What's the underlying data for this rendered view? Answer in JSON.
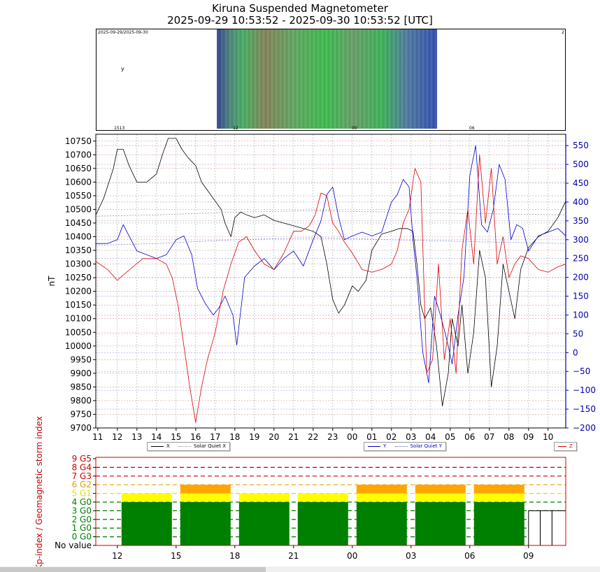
{
  "header": {
    "title": "Kiruna Suspended Magnetometer",
    "subtitle": "2025-09-29 10:53:52 - 2025-09-30 10:53:52 [UTC]"
  },
  "keogram": {
    "top_left_label": "2025-09-29/2025-09-30",
    "right_label": "2",
    "marker_y": "y",
    "bottom_labels": [
      "1513",
      "12",
      "00",
      "06"
    ]
  },
  "colors": {
    "x": "#000000",
    "y": "#0000cc",
    "z": "#dd0000",
    "g_green": "#008000",
    "g_yellow": "#ffff00",
    "g_orange": "#ffa500",
    "level_red": "#cc0000",
    "level_orange": "#e6a000",
    "level_yellow": "#dddd00",
    "level_green": "#008000"
  },
  "chart_data": [
    {
      "type": "line",
      "ylabel": "nT",
      "ylim": [
        9700,
        10775
      ],
      "y2lim": [
        -200,
        580
      ],
      "yticks": [
        9700,
        9750,
        9800,
        9850,
        9900,
        9950,
        10000,
        10050,
        10100,
        10150,
        10200,
        10250,
        10300,
        10350,
        10400,
        10450,
        10500,
        10550,
        10600,
        10650,
        10700,
        10750
      ],
      "y2ticks": [
        -200,
        -150,
        -100,
        -50,
        0,
        50,
        100,
        150,
        200,
        250,
        300,
        350,
        400,
        450,
        500,
        550
      ],
      "xticks": [
        "11",
        "12",
        "13",
        "14",
        "15",
        "16",
        "17",
        "18",
        "19",
        "20",
        "21",
        "22",
        "23",
        "00",
        "01",
        "02",
        "03",
        "04",
        "05",
        "06",
        "07",
        "08",
        "09",
        "10"
      ],
      "xlim_hours": [
        10.9,
        34.9
      ],
      "series": [
        {
          "name": "X",
          "axis": "left",
          "x": [
            10.9,
            11.3,
            11.8,
            12.0,
            12.3,
            12.6,
            13.0,
            13.5,
            14.0,
            14.3,
            14.6,
            15.0,
            15.3,
            15.6,
            16.0,
            16.3,
            16.7,
            17.0,
            17.3,
            17.5,
            17.8,
            18.0,
            18.3,
            18.6,
            19.0,
            19.5,
            20.0,
            20.5,
            21.0,
            21.5,
            22.0,
            22.4,
            22.7,
            23.0,
            23.3,
            23.6,
            24.0,
            24.3,
            24.7,
            25.0,
            25.5,
            26.0,
            26.4,
            26.8,
            27.1,
            27.3,
            27.5,
            27.7,
            28.0,
            28.3,
            28.6,
            28.9,
            29.1,
            29.4,
            29.6,
            29.9,
            30.2,
            30.5,
            30.8,
            31.1,
            31.4,
            31.7,
            32.0,
            32.3,
            32.6,
            33.0,
            33.5,
            34.0,
            34.5,
            34.9
          ],
          "y": [
            10480,
            10540,
            10650,
            10720,
            10720,
            10660,
            10600,
            10600,
            10630,
            10700,
            10760,
            10760,
            10720,
            10690,
            10660,
            10600,
            10560,
            10530,
            10500,
            10450,
            10400,
            10470,
            10490,
            10480,
            10470,
            10480,
            10460,
            10450,
            10440,
            10430,
            10420,
            10400,
            10300,
            10170,
            10120,
            10150,
            10220,
            10200,
            10240,
            10350,
            10410,
            10420,
            10430,
            10430,
            10420,
            10300,
            10150,
            10100,
            10140,
            10000,
            9780,
            9900,
            10100,
            10000,
            10150,
            9900,
            10050,
            10350,
            10250,
            9850,
            10000,
            10300,
            10200,
            10100,
            10280,
            10360,
            10400,
            10420,
            10470,
            10530
          ]
        },
        {
          "name": "Solar Quiet X",
          "axis": "left",
          "x": [
            10.9,
            14.0,
            18.0,
            22.0,
            26.0,
            30.0,
            34.9
          ],
          "y": [
            10475,
            10480,
            10490,
            10495,
            10490,
            10485,
            10480
          ]
        },
        {
          "name": "Y",
          "axis": "right",
          "x": [
            10.9,
            11.5,
            12.0,
            12.3,
            12.7,
            13.0,
            13.5,
            14.0,
            14.5,
            15.0,
            15.4,
            15.8,
            16.1,
            16.5,
            16.9,
            17.2,
            17.5,
            17.9,
            18.1,
            18.5,
            19.0,
            19.5,
            20.0,
            20.5,
            21.0,
            21.5,
            22.0,
            22.4,
            22.7,
            23.0,
            23.3,
            23.6,
            24.0,
            24.5,
            25.0,
            25.5,
            26.0,
            26.3,
            26.6,
            26.9,
            27.1,
            27.3,
            27.6,
            27.9,
            28.2,
            28.5,
            28.8,
            29.1,
            29.4,
            29.7,
            30.0,
            30.3,
            30.6,
            30.9,
            31.2,
            31.5,
            31.8,
            32.1,
            32.4,
            32.7,
            33.0,
            33.5,
            34.0,
            34.5,
            34.9
          ],
          "y": [
            290,
            290,
            300,
            340,
            300,
            270,
            260,
            250,
            260,
            300,
            310,
            260,
            170,
            130,
            100,
            120,
            150,
            100,
            20,
            200,
            230,
            250,
            220,
            250,
            270,
            230,
            300,
            350,
            420,
            440,
            360,
            300,
            310,
            320,
            310,
            320,
            400,
            420,
            460,
            440,
            300,
            200,
            0,
            -80,
            150,
            100,
            40,
            -30,
            100,
            200,
            470,
            550,
            340,
            320,
            380,
            500,
            460,
            300,
            340,
            330,
            270,
            310,
            320,
            330,
            310
          ]
        },
        {
          "name": "Solar Quiet Y",
          "axis": "right",
          "x": [
            10.9,
            14.0,
            18.0,
            22.0,
            26.0,
            30.0,
            34.9
          ],
          "y": [
            285,
            290,
            300,
            305,
            300,
            295,
            290
          ]
        },
        {
          "name": "Z",
          "axis": "left",
          "x": [
            10.9,
            11.5,
            12.0,
            12.3,
            12.8,
            13.3,
            14.0,
            14.5,
            14.8,
            15.1,
            15.4,
            15.7,
            16.0,
            16.3,
            16.6,
            17.0,
            17.4,
            17.8,
            18.2,
            18.6,
            19.0,
            19.5,
            20.0,
            20.5,
            21.0,
            21.4,
            21.8,
            22.1,
            22.4,
            22.7,
            23.0,
            23.3,
            23.6,
            24.0,
            24.5,
            25.0,
            25.5,
            26.0,
            26.3,
            26.6,
            26.9,
            27.2,
            27.5,
            27.8,
            28.1,
            28.4,
            28.7,
            29.0,
            29.3,
            29.6,
            29.9,
            30.2,
            30.5,
            30.8,
            31.1,
            31.4,
            31.7,
            32.0,
            32.3,
            32.6,
            33.0,
            33.5,
            34.0,
            34.5,
            34.9
          ],
          "y": [
            10310,
            10280,
            10240,
            10260,
            10290,
            10320,
            10320,
            10300,
            10250,
            10150,
            10000,
            9850,
            9720,
            9850,
            9950,
            10050,
            10200,
            10300,
            10380,
            10400,
            10350,
            10300,
            10280,
            10340,
            10420,
            10420,
            10440,
            10480,
            10560,
            10550,
            10450,
            10420,
            10380,
            10340,
            10280,
            10270,
            10280,
            10300,
            10350,
            10450,
            10500,
            10650,
            10600,
            9900,
            9950,
            10300,
            9950,
            10100,
            9900,
            10350,
            10500,
            10300,
            10700,
            10450,
            10650,
            10300,
            10400,
            10250,
            10300,
            10330,
            10320,
            10280,
            10270,
            10290,
            10300
          ]
        }
      ]
    },
    {
      "type": "bar",
      "ylabel": "Kp-index / Geomagnetic storm index",
      "ylevels": [
        "No value",
        "0 G0",
        "1 G0",
        "2 G0",
        "3 G0",
        "4 G0",
        "5 G1",
        "6 G2",
        "7 G3",
        "8 G4",
        "9 G5"
      ],
      "xticks": [
        "12",
        "15",
        "18",
        "21",
        "00",
        "03",
        "06",
        "09"
      ],
      "xlim_hours": [
        10.9,
        34.9
      ],
      "bars": [
        {
          "start": 12.0,
          "end": 15.0,
          "kp": 5
        },
        {
          "start": 15.0,
          "end": 18.0,
          "kp": 6
        },
        {
          "start": 18.0,
          "end": 21.0,
          "kp": 5
        },
        {
          "start": 21.0,
          "end": 24.0,
          "kp": 5
        },
        {
          "start": 24.0,
          "end": 27.0,
          "kp": 6
        },
        {
          "start": 27.0,
          "end": 30.0,
          "kp": 6
        },
        {
          "start": 30.0,
          "end": 33.0,
          "kp": 6
        }
      ],
      "no_value_bars": [
        {
          "start": 33.0,
          "end": 33.6
        },
        {
          "start": 33.6,
          "end": 34.2
        },
        {
          "start": 34.2,
          "end": 34.9
        }
      ],
      "xlabel_partial": "Kp-index / Geomagnetic storm index (ultra-thin partial label)"
    }
  ],
  "legend": {
    "left": {
      "x_label": "X",
      "sq_label": "Solar Quiet X"
    },
    "middle": {
      "y_label": "Y",
      "sq_label": "Solar Quiet Y"
    },
    "right": {
      "z_label": "Z"
    }
  }
}
